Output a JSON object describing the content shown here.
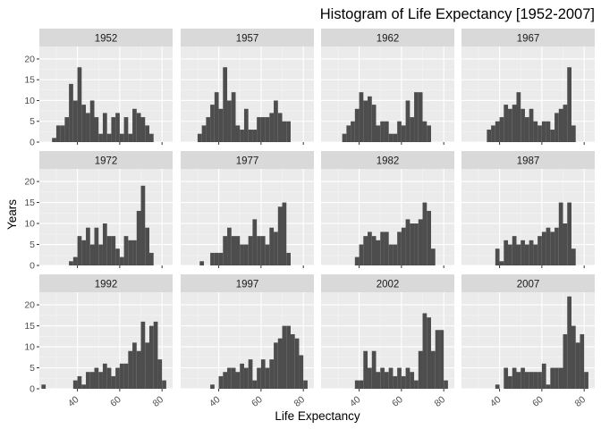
{
  "chart_data": {
    "type": "bar",
    "kind": "faceted-histogram",
    "title": "Histogram of Life Expectancy [1952-2007]",
    "xlabel": "Life Expectancy",
    "ylabel": "Years",
    "xlim": [
      22,
      85
    ],
    "ylim": [
      0,
      23
    ],
    "x_ticks": [
      40,
      60,
      80
    ],
    "y_ticks": [
      0,
      5,
      10,
      15,
      20
    ],
    "bin_width": 2,
    "grid": true,
    "bar_color": "#4d4d4d",
    "panel_bg": "#ebebeb",
    "strip_bg": "#d9d9d9",
    "legend": "none",
    "layout": {
      "rows": 3,
      "cols": 4
    },
    "facets": [
      {
        "label": "1952",
        "bins": [
          {
            "x": 29,
            "y": 1
          },
          {
            "x": 31,
            "y": 4
          },
          {
            "x": 33,
            "y": 4
          },
          {
            "x": 35,
            "y": 6
          },
          {
            "x": 37,
            "y": 14
          },
          {
            "x": 39,
            "y": 10
          },
          {
            "x": 41,
            "y": 18
          },
          {
            "x": 43,
            "y": 9
          },
          {
            "x": 45,
            "y": 7
          },
          {
            "x": 47,
            "y": 10
          },
          {
            "x": 49,
            "y": 6
          },
          {
            "x": 51,
            "y": 2
          },
          {
            "x": 53,
            "y": 7
          },
          {
            "x": 55,
            "y": 2
          },
          {
            "x": 57,
            "y": 6
          },
          {
            "x": 59,
            "y": 7
          },
          {
            "x": 61,
            "y": 2
          },
          {
            "x": 63,
            "y": 6
          },
          {
            "x": 65,
            "y": 2
          },
          {
            "x": 67,
            "y": 8
          },
          {
            "x": 69,
            "y": 7
          },
          {
            "x": 71,
            "y": 6
          },
          {
            "x": 73,
            "y": 4
          },
          {
            "x": 75,
            "y": 2
          }
        ]
      },
      {
        "label": "1957",
        "bins": [
          {
            "x": 31,
            "y": 2
          },
          {
            "x": 33,
            "y": 4
          },
          {
            "x": 35,
            "y": 6
          },
          {
            "x": 37,
            "y": 9
          },
          {
            "x": 39,
            "y": 12
          },
          {
            "x": 41,
            "y": 8
          },
          {
            "x": 43,
            "y": 18
          },
          {
            "x": 45,
            "y": 10
          },
          {
            "x": 47,
            "y": 12
          },
          {
            "x": 49,
            "y": 4
          },
          {
            "x": 51,
            "y": 3
          },
          {
            "x": 53,
            "y": 8
          },
          {
            "x": 55,
            "y": 3
          },
          {
            "x": 57,
            "y": 3
          },
          {
            "x": 59,
            "y": 6
          },
          {
            "x": 61,
            "y": 6
          },
          {
            "x": 63,
            "y": 6
          },
          {
            "x": 65,
            "y": 7
          },
          {
            "x": 67,
            "y": 10
          },
          {
            "x": 69,
            "y": 7
          },
          {
            "x": 71,
            "y": 5
          },
          {
            "x": 73,
            "y": 5
          }
        ]
      },
      {
        "label": "1962",
        "bins": [
          {
            "x": 33,
            "y": 2
          },
          {
            "x": 35,
            "y": 4
          },
          {
            "x": 37,
            "y": 5
          },
          {
            "x": 39,
            "y": 8
          },
          {
            "x": 41,
            "y": 12
          },
          {
            "x": 43,
            "y": 10
          },
          {
            "x": 45,
            "y": 11
          },
          {
            "x": 47,
            "y": 9
          },
          {
            "x": 49,
            "y": 4
          },
          {
            "x": 51,
            "y": 5
          },
          {
            "x": 53,
            "y": 5
          },
          {
            "x": 55,
            "y": 2
          },
          {
            "x": 57,
            "y": 2
          },
          {
            "x": 59,
            "y": 5
          },
          {
            "x": 61,
            "y": 4
          },
          {
            "x": 63,
            "y": 10
          },
          {
            "x": 65,
            "y": 6
          },
          {
            "x": 67,
            "y": 12
          },
          {
            "x": 69,
            "y": 12
          },
          {
            "x": 71,
            "y": 5
          },
          {
            "x": 73,
            "y": 4
          }
        ]
      },
      {
        "label": "1967",
        "bins": [
          {
            "x": 35,
            "y": 3
          },
          {
            "x": 37,
            "y": 4
          },
          {
            "x": 39,
            "y": 5
          },
          {
            "x": 41,
            "y": 6
          },
          {
            "x": 43,
            "y": 9
          },
          {
            "x": 45,
            "y": 8
          },
          {
            "x": 47,
            "y": 9
          },
          {
            "x": 49,
            "y": 12
          },
          {
            "x": 51,
            "y": 8
          },
          {
            "x": 53,
            "y": 6
          },
          {
            "x": 55,
            "y": 8
          },
          {
            "x": 57,
            "y": 5
          },
          {
            "x": 59,
            "y": 4
          },
          {
            "x": 61,
            "y": 5
          },
          {
            "x": 63,
            "y": 5
          },
          {
            "x": 65,
            "y": 3
          },
          {
            "x": 67,
            "y": 7
          },
          {
            "x": 69,
            "y": 8
          },
          {
            "x": 71,
            "y": 9
          },
          {
            "x": 73,
            "y": 18
          },
          {
            "x": 75,
            "y": 4
          }
        ]
      },
      {
        "label": "1972",
        "bins": [
          {
            "x": 37,
            "y": 1
          },
          {
            "x": 39,
            "y": 2
          },
          {
            "x": 41,
            "y": 7
          },
          {
            "x": 43,
            "y": 6
          },
          {
            "x": 45,
            "y": 9
          },
          {
            "x": 47,
            "y": 5
          },
          {
            "x": 49,
            "y": 9
          },
          {
            "x": 51,
            "y": 5
          },
          {
            "x": 53,
            "y": 10
          },
          {
            "x": 55,
            "y": 7
          },
          {
            "x": 57,
            "y": 7
          },
          {
            "x": 59,
            "y": 4
          },
          {
            "x": 61,
            "y": 2
          },
          {
            "x": 63,
            "y": 7
          },
          {
            "x": 65,
            "y": 6
          },
          {
            "x": 67,
            "y": 6
          },
          {
            "x": 69,
            "y": 13
          },
          {
            "x": 71,
            "y": 19
          },
          {
            "x": 73,
            "y": 9
          },
          {
            "x": 75,
            "y": 3
          }
        ]
      },
      {
        "label": "1977",
        "bins": [
          {
            "x": 32,
            "y": 1
          },
          {
            "x": 37,
            "y": 3
          },
          {
            "x": 39,
            "y": 3
          },
          {
            "x": 41,
            "y": 3
          },
          {
            "x": 43,
            "y": 7
          },
          {
            "x": 45,
            "y": 9
          },
          {
            "x": 47,
            "y": 7
          },
          {
            "x": 49,
            "y": 7
          },
          {
            "x": 51,
            "y": 5
          },
          {
            "x": 53,
            "y": 5
          },
          {
            "x": 55,
            "y": 7
          },
          {
            "x": 57,
            "y": 11
          },
          {
            "x": 59,
            "y": 7
          },
          {
            "x": 61,
            "y": 7
          },
          {
            "x": 63,
            "y": 5
          },
          {
            "x": 65,
            "y": 9
          },
          {
            "x": 67,
            "y": 8
          },
          {
            "x": 69,
            "y": 14
          },
          {
            "x": 71,
            "y": 15
          },
          {
            "x": 73,
            "y": 3
          }
        ]
      },
      {
        "label": "1982",
        "bins": [
          {
            "x": 39,
            "y": 2
          },
          {
            "x": 41,
            "y": 5
          },
          {
            "x": 43,
            "y": 7
          },
          {
            "x": 45,
            "y": 8
          },
          {
            "x": 47,
            "y": 7
          },
          {
            "x": 49,
            "y": 6
          },
          {
            "x": 51,
            "y": 8
          },
          {
            "x": 53,
            "y": 8
          },
          {
            "x": 55,
            "y": 5
          },
          {
            "x": 57,
            "y": 5
          },
          {
            "x": 59,
            "y": 8
          },
          {
            "x": 61,
            "y": 9
          },
          {
            "x": 63,
            "y": 11
          },
          {
            "x": 65,
            "y": 10
          },
          {
            "x": 67,
            "y": 10
          },
          {
            "x": 69,
            "y": 11
          },
          {
            "x": 71,
            "y": 15
          },
          {
            "x": 73,
            "y": 13
          },
          {
            "x": 75,
            "y": 4
          }
        ]
      },
      {
        "label": "1987",
        "bins": [
          {
            "x": 39,
            "y": 4
          },
          {
            "x": 41,
            "y": 1
          },
          {
            "x": 43,
            "y": 6
          },
          {
            "x": 45,
            "y": 5
          },
          {
            "x": 47,
            "y": 7
          },
          {
            "x": 49,
            "y": 5
          },
          {
            "x": 51,
            "y": 6
          },
          {
            "x": 53,
            "y": 5
          },
          {
            "x": 55,
            "y": 6
          },
          {
            "x": 57,
            "y": 5
          },
          {
            "x": 59,
            "y": 7
          },
          {
            "x": 61,
            "y": 8
          },
          {
            "x": 63,
            "y": 9
          },
          {
            "x": 65,
            "y": 8
          },
          {
            "x": 67,
            "y": 9
          },
          {
            "x": 69,
            "y": 15
          },
          {
            "x": 71,
            "y": 10
          },
          {
            "x": 73,
            "y": 15
          },
          {
            "x": 75,
            "y": 4
          }
        ]
      },
      {
        "label": "1992",
        "bins": [
          {
            "x": 24,
            "y": 1
          },
          {
            "x": 39,
            "y": 2
          },
          {
            "x": 41,
            "y": 3
          },
          {
            "x": 43,
            "y": 1
          },
          {
            "x": 45,
            "y": 4
          },
          {
            "x": 47,
            "y": 4
          },
          {
            "x": 49,
            "y": 5
          },
          {
            "x": 51,
            "y": 4
          },
          {
            "x": 53,
            "y": 6
          },
          {
            "x": 55,
            "y": 5
          },
          {
            "x": 57,
            "y": 3
          },
          {
            "x": 59,
            "y": 5
          },
          {
            "x": 61,
            "y": 6
          },
          {
            "x": 63,
            "y": 6
          },
          {
            "x": 65,
            "y": 9
          },
          {
            "x": 67,
            "y": 11
          },
          {
            "x": 69,
            "y": 9
          },
          {
            "x": 71,
            "y": 16
          },
          {
            "x": 73,
            "y": 11
          },
          {
            "x": 75,
            "y": 15
          },
          {
            "x": 77,
            "y": 16
          },
          {
            "x": 79,
            "y": 7
          },
          {
            "x": 81,
            "y": 2
          }
        ]
      },
      {
        "label": "1997",
        "bins": [
          {
            "x": 37,
            "y": 1
          },
          {
            "x": 41,
            "y": 3
          },
          {
            "x": 43,
            "y": 4
          },
          {
            "x": 45,
            "y": 5
          },
          {
            "x": 47,
            "y": 5
          },
          {
            "x": 49,
            "y": 4
          },
          {
            "x": 51,
            "y": 6
          },
          {
            "x": 53,
            "y": 5
          },
          {
            "x": 55,
            "y": 7
          },
          {
            "x": 57,
            "y": 2
          },
          {
            "x": 59,
            "y": 5
          },
          {
            "x": 61,
            "y": 7
          },
          {
            "x": 63,
            "y": 5
          },
          {
            "x": 65,
            "y": 7
          },
          {
            "x": 67,
            "y": 11
          },
          {
            "x": 69,
            "y": 12
          },
          {
            "x": 71,
            "y": 15
          },
          {
            "x": 73,
            "y": 15
          },
          {
            "x": 75,
            "y": 13
          },
          {
            "x": 77,
            "y": 12
          },
          {
            "x": 79,
            "y": 8
          },
          {
            "x": 81,
            "y": 2
          }
        ]
      },
      {
        "label": "2002",
        "bins": [
          {
            "x": 39,
            "y": 2
          },
          {
            "x": 41,
            "y": 2
          },
          {
            "x": 43,
            "y": 9
          },
          {
            "x": 45,
            "y": 5
          },
          {
            "x": 47,
            "y": 9
          },
          {
            "x": 49,
            "y": 4
          },
          {
            "x": 51,
            "y": 5
          },
          {
            "x": 53,
            "y": 4
          },
          {
            "x": 55,
            "y": 5
          },
          {
            "x": 57,
            "y": 3
          },
          {
            "x": 59,
            "y": 5
          },
          {
            "x": 61,
            "y": 3
          },
          {
            "x": 63,
            "y": 5
          },
          {
            "x": 65,
            "y": 4
          },
          {
            "x": 67,
            "y": 2
          },
          {
            "x": 69,
            "y": 9
          },
          {
            "x": 71,
            "y": 18
          },
          {
            "x": 73,
            "y": 17
          },
          {
            "x": 75,
            "y": 9
          },
          {
            "x": 77,
            "y": 14
          },
          {
            "x": 79,
            "y": 14
          },
          {
            "x": 81,
            "y": 2
          }
        ]
      },
      {
        "label": "2007",
        "bins": [
          {
            "x": 39,
            "y": 1
          },
          {
            "x": 43,
            "y": 5
          },
          {
            "x": 45,
            "y": 3
          },
          {
            "x": 47,
            "y": 5
          },
          {
            "x": 49,
            "y": 4
          },
          {
            "x": 51,
            "y": 5
          },
          {
            "x": 53,
            "y": 4
          },
          {
            "x": 55,
            "y": 4
          },
          {
            "x": 57,
            "y": 4
          },
          {
            "x": 59,
            "y": 4
          },
          {
            "x": 61,
            "y": 6
          },
          {
            "x": 63,
            "y": 1
          },
          {
            "x": 65,
            "y": 5
          },
          {
            "x": 67,
            "y": 5
          },
          {
            "x": 69,
            "y": 5
          },
          {
            "x": 71,
            "y": 13
          },
          {
            "x": 73,
            "y": 22
          },
          {
            "x": 75,
            "y": 15
          },
          {
            "x": 77,
            "y": 11
          },
          {
            "x": 79,
            "y": 13
          },
          {
            "x": 81,
            "y": 4
          }
        ]
      }
    ]
  }
}
